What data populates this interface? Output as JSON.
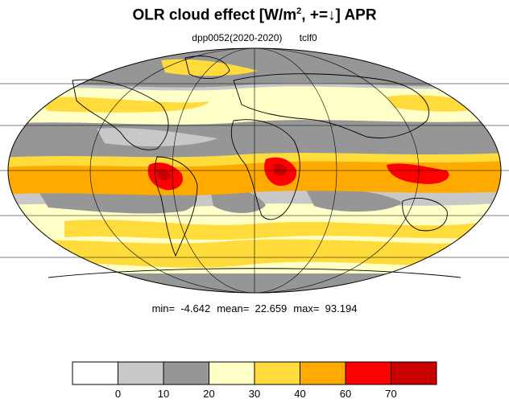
{
  "title": {
    "prefix": "OLR cloud effect [W/m",
    "superscript": "2",
    "suffix": ", +=↓]  APR"
  },
  "subtitle": {
    "experiment": "dpp0052(2020-2020)",
    "variable": "tclf0"
  },
  "stats": {
    "min": "min=  -4.642",
    "mean": "mean=  22.659",
    "max": "max=  93.194"
  },
  "colorbar": {
    "colors": [
      "#ffffff",
      "#c8c8c8",
      "#969696",
      "#ffffc8",
      "#ffdc3c",
      "#ffaa00",
      "#ff0000",
      "#c80000"
    ],
    "tick_labels": [
      "0",
      "10",
      "20",
      "30",
      "40",
      "60",
      "70"
    ]
  },
  "map": {
    "projection": "mollweide",
    "ocean_or_land_fill": "#c8c8c8",
    "coastline_color": "#000000"
  }
}
